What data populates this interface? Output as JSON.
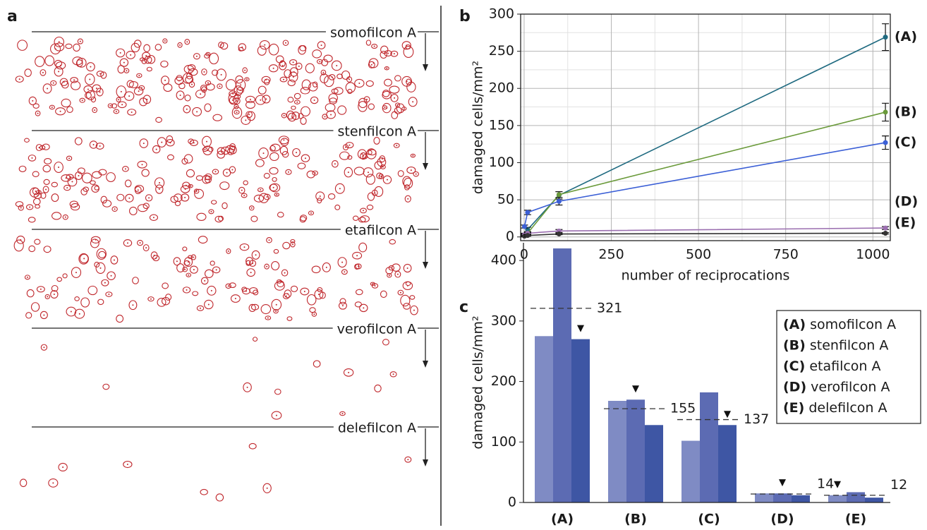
{
  "panel_a": {
    "letter": "a",
    "strips": [
      "somofilcon A",
      "stenfilcon A",
      "etafilcon A",
      "verofilcon A",
      "delefilcon A"
    ]
  },
  "chart_data": [
    {
      "type": "line",
      "letter": "b",
      "ylabel": "damaged cells/mm²",
      "xlabel": "number of reciprocations",
      "x": [
        1,
        10,
        100,
        1036
      ],
      "series": [
        {
          "name": "(A)",
          "color": "#1f6a80",
          "values": [
            3,
            10,
            56,
            269
          ],
          "errors": [
            2,
            3,
            5,
            18
          ]
        },
        {
          "name": "(B)",
          "color": "#6a9a3a",
          "values": [
            2,
            5,
            57,
            168
          ],
          "errors": [
            1,
            2,
            4,
            12
          ]
        },
        {
          "name": "(C)",
          "color": "#3b5fd6",
          "values": [
            14,
            33,
            48,
            127
          ],
          "errors": [
            2,
            3,
            5,
            9
          ]
        },
        {
          "name": "(D)",
          "color": "#9b6fb0",
          "values": [
            3,
            5,
            8,
            12
          ],
          "errors": [
            1,
            1,
            2,
            2
          ]
        },
        {
          "name": "(E)",
          "color": "#333333",
          "values": [
            1,
            2,
            4,
            5
          ],
          "errors": [
            1,
            1,
            1,
            1
          ]
        }
      ],
      "xlim": [
        -10,
        1050
      ],
      "ylim": [
        -5,
        300
      ],
      "xticks": [
        0,
        250,
        500,
        750,
        1000
      ],
      "yticks": [
        0,
        50,
        100,
        150,
        200,
        250,
        300
      ],
      "grid": true
    },
    {
      "type": "groupedbar",
      "letter": "c",
      "ylabel": "damaged cells/mm²",
      "categories": [
        "(A)",
        "(B)",
        "(C)",
        "(D)",
        "(E)"
      ],
      "series": [
        {
          "color": "#7f8bc4",
          "values": [
            275,
            168,
            102,
            15,
            12
          ]
        },
        {
          "color": "#5c6bb3",
          "values": [
            420,
            170,
            182,
            15,
            17
          ]
        },
        {
          "color": "#3e56a4",
          "values": [
            270,
            128,
            128,
            12,
            8
          ]
        }
      ],
      "means": [
        321,
        155,
        137,
        14,
        12
      ],
      "marked_bar": [
        2,
        1,
        2,
        1,
        0
      ],
      "ylim": [
        0,
        420
      ],
      "yticks": [
        0,
        100,
        200,
        300,
        400
      ],
      "legend": [
        {
          "key": "(A)",
          "label": "somofilcon A"
        },
        {
          "key": "(B)",
          "label": "stenfilcon A"
        },
        {
          "key": "(C)",
          "label": "etafilcon A"
        },
        {
          "key": "(D)",
          "label": "verofilcon A"
        },
        {
          "key": "(E)",
          "label": "delefilcon A"
        }
      ]
    }
  ]
}
